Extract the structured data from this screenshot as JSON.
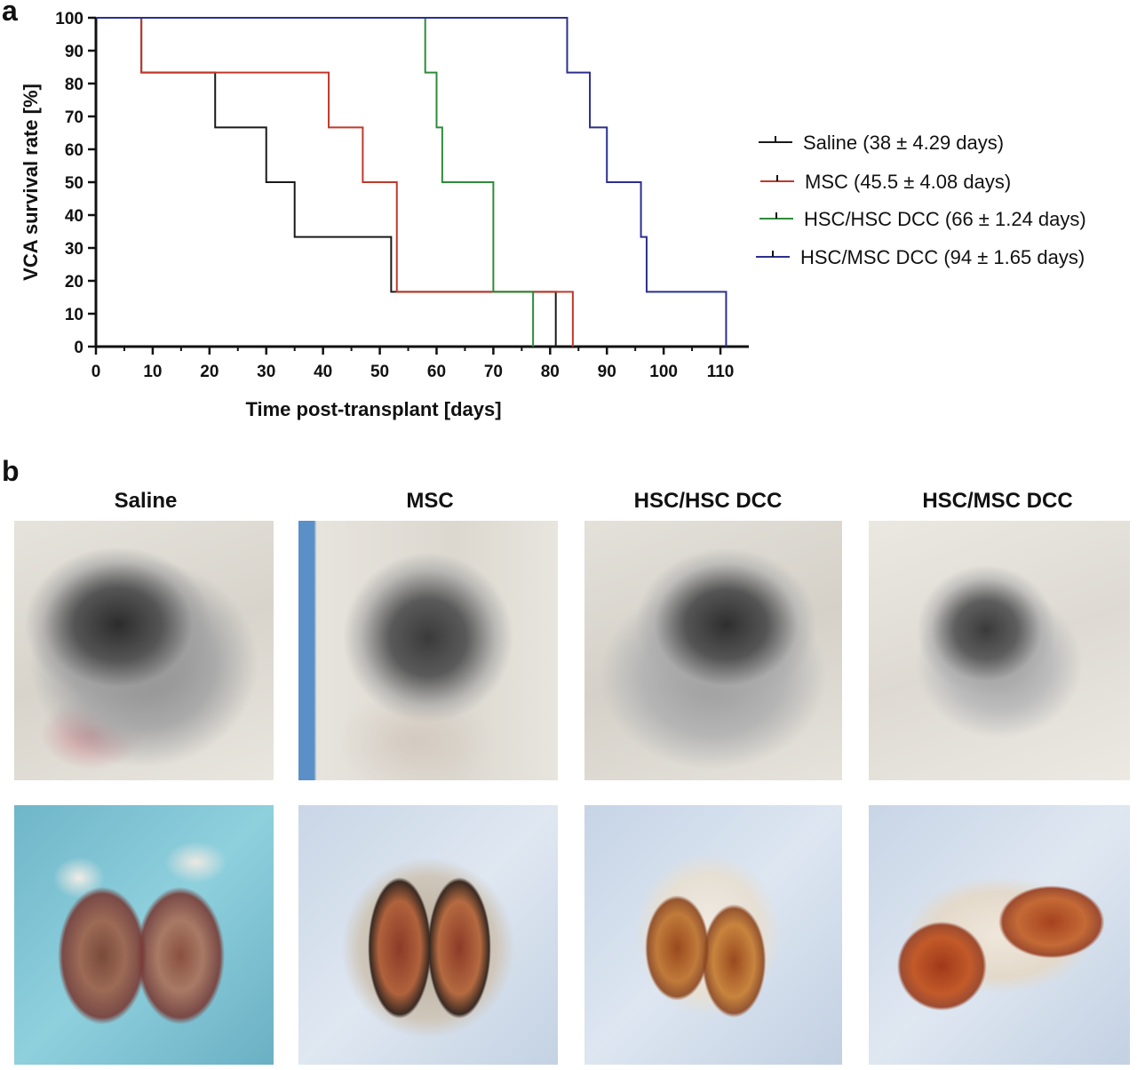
{
  "panel_a_label": "a",
  "panel_b_label": "b",
  "chart_data": {
    "type": "line",
    "step": true,
    "title": "",
    "xlabel": "Time post-transplant [days]",
    "ylabel": "VCA survival rate [%]",
    "xlim": [
      0,
      115
    ],
    "ylim": [
      0,
      100
    ],
    "xticks": [
      0,
      10,
      20,
      30,
      40,
      50,
      60,
      70,
      80,
      90,
      100,
      110
    ],
    "yticks": [
      0,
      10,
      20,
      30,
      40,
      50,
      60,
      70,
      80,
      90,
      100
    ],
    "grid": false,
    "legend": "right",
    "series": [
      {
        "name": "Saline (38 ± 4.29 days)",
        "color": "#1a1a1a",
        "x": [
          0,
          8,
          21,
          30,
          35,
          52,
          81
        ],
        "y": [
          100,
          83.33,
          66.67,
          50,
          33.33,
          16.67,
          0
        ]
      },
      {
        "name": "MSC (45.5 ± 4.08 days)",
        "color": "#c0392b",
        "x": [
          0,
          8,
          40,
          41,
          47,
          53,
          84
        ],
        "y": [
          100,
          83.33,
          83.33,
          66.67,
          50,
          16.67,
          0
        ]
      },
      {
        "name": "HSC/HSC DCC (66 ± 1.24 days)",
        "color": "#2e8b3a",
        "x": [
          0,
          58,
          60,
          61,
          70,
          77
        ],
        "y": [
          100,
          83.33,
          66.67,
          50,
          16.67,
          0
        ]
      },
      {
        "name": "HSC/MSC DCC (94 ± 1.65 days)",
        "color": "#2b2f8f",
        "x": [
          0,
          83,
          87,
          90,
          96,
          97,
          111
        ],
        "y": [
          100,
          83.33,
          66.67,
          50,
          33.33,
          16.67,
          0
        ]
      }
    ]
  },
  "panel_b": {
    "columns": [
      "Saline",
      "MSC",
      "HSC/HSC DCC",
      "HSC/MSC DCC"
    ]
  }
}
